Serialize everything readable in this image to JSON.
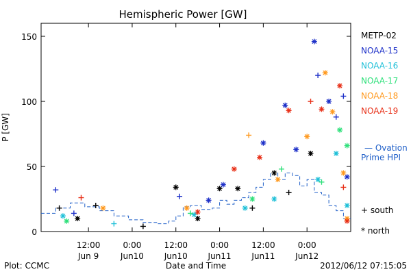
{
  "chart_data": {
    "type": "scatter",
    "title": "Hemispheric Power [GW]",
    "xlabel": "Date and Time",
    "ylabel": "P [GW]",
    "xlim": [
      "2012-06-08T23:00",
      "2012-06-12T12:00"
    ],
    "ylim": [
      0,
      160
    ],
    "yticks": [
      0,
      50,
      100,
      150
    ],
    "xticks": [
      {
        "top": "12:00",
        "bottom": "Jun 9",
        "t": "2012-06-09T12:00"
      },
      {
        "top": "0:00",
        "bottom": "Jun10",
        "t": "2012-06-10T00:00"
      },
      {
        "top": "12:00",
        "bottom": "Jun10",
        "t": "2012-06-10T12:00"
      },
      {
        "top": "0:00",
        "bottom": "Jun11",
        "t": "2012-06-11T00:00"
      },
      {
        "top": "12:00",
        "bottom": "Jun11",
        "t": "2012-06-11T12:00"
      },
      {
        "top": "0:00",
        "bottom": "Jun12",
        "t": "2012-06-12T00:00"
      }
    ],
    "grid": false,
    "legend_position": "right",
    "marker_legend": [
      {
        "symbol": "+",
        "label": "south"
      },
      {
        "symbol": "*",
        "label": "north"
      }
    ],
    "ovation": {
      "name_line1": "— Ovation",
      "name_line2": "Prime HPI",
      "color": "#1f5fc8",
      "points": [
        [
          "2012-06-08T23:00",
          14
        ],
        [
          "2012-06-09T03:00",
          18
        ],
        [
          "2012-06-09T07:00",
          22
        ],
        [
          "2012-06-09T11:00",
          19
        ],
        [
          "2012-06-09T15:00",
          16
        ],
        [
          "2012-06-09T19:00",
          12
        ],
        [
          "2012-06-09T23:00",
          9
        ],
        [
          "2012-06-10T03:00",
          7
        ],
        [
          "2012-06-10T07:00",
          6
        ],
        [
          "2012-06-10T10:00",
          8
        ],
        [
          "2012-06-10T12:00",
          12
        ],
        [
          "2012-06-10T14:00",
          19
        ],
        [
          "2012-06-10T16:00",
          20
        ],
        [
          "2012-06-10T19:00",
          17
        ],
        [
          "2012-06-10T22:00",
          18
        ],
        [
          "2012-06-11T00:00",
          24
        ],
        [
          "2012-06-11T02:00",
          21
        ],
        [
          "2012-06-11T04:00",
          24
        ],
        [
          "2012-06-11T06:00",
          26
        ],
        [
          "2012-06-11T08:00",
          30
        ],
        [
          "2012-06-11T10:00",
          34
        ],
        [
          "2012-06-11T12:00",
          40
        ],
        [
          "2012-06-11T14:00",
          45
        ],
        [
          "2012-06-11T16:00",
          40
        ],
        [
          "2012-06-11T18:00",
          45
        ],
        [
          "2012-06-11T20:00",
          43
        ],
        [
          "2012-06-11T22:00",
          35
        ],
        [
          "2012-06-12T00:00",
          40
        ],
        [
          "2012-06-12T02:00",
          30
        ],
        [
          "2012-06-12T04:00",
          28
        ],
        [
          "2012-06-12T06:00",
          20
        ],
        [
          "2012-06-12T08:00",
          16
        ],
        [
          "2012-06-12T10:00",
          10
        ]
      ]
    },
    "series": [
      {
        "name": "METP-02",
        "color": "#000000",
        "points": [
          [
            "2012-06-09T04:00",
            18,
            "+"
          ],
          [
            "2012-06-09T09:00",
            10,
            "*"
          ],
          [
            "2012-06-09T14:00",
            20,
            "+"
          ],
          [
            "2012-06-10T03:00",
            4,
            "+"
          ],
          [
            "2012-06-10T12:00",
            34,
            "*"
          ],
          [
            "2012-06-10T18:00",
            10,
            "*"
          ],
          [
            "2012-06-11T00:00",
            33,
            "*"
          ],
          [
            "2012-06-11T05:00",
            33,
            "*"
          ],
          [
            "2012-06-11T09:00",
            18,
            "+"
          ],
          [
            "2012-06-11T15:00",
            45,
            "*"
          ],
          [
            "2012-06-11T19:00",
            30,
            "+"
          ],
          [
            "2012-06-12T01:00",
            60,
            "*"
          ]
        ]
      },
      {
        "name": "NOAA-15",
        "color": "#1c2fc8",
        "points": [
          [
            "2012-06-09T03:00",
            32,
            "+"
          ],
          [
            "2012-06-09T08:00",
            14,
            "+"
          ],
          [
            "2012-06-10T13:00",
            27,
            "+"
          ],
          [
            "2012-06-10T21:00",
            24,
            "*"
          ],
          [
            "2012-06-11T01:00",
            36,
            "*"
          ],
          [
            "2012-06-11T12:00",
            68,
            "*"
          ],
          [
            "2012-06-11T18:00",
            97,
            "*"
          ],
          [
            "2012-06-11T21:00",
            63,
            "*"
          ],
          [
            "2012-06-12T02:00",
            146,
            "*"
          ],
          [
            "2012-06-12T03:00",
            120,
            "+"
          ],
          [
            "2012-06-12T06:00",
            100,
            "*"
          ],
          [
            "2012-06-12T08:00",
            88,
            "+"
          ],
          [
            "2012-06-12T10:00",
            104,
            "+"
          ],
          [
            "2012-06-12T11:00",
            42,
            "*"
          ]
        ]
      },
      {
        "name": "NOAA-16",
        "color": "#20c0d8",
        "points": [
          [
            "2012-06-09T05:00",
            12,
            "*"
          ],
          [
            "2012-06-09T19:00",
            6,
            "+"
          ],
          [
            "2012-06-10T17:00",
            13,
            "*"
          ],
          [
            "2012-06-11T07:00",
            18,
            "*"
          ],
          [
            "2012-06-11T15:00",
            25,
            "*"
          ],
          [
            "2012-06-12T03:00",
            40,
            "*"
          ],
          [
            "2012-06-12T08:00",
            60,
            "*"
          ],
          [
            "2012-06-12T11:00",
            20,
            "*"
          ]
        ]
      },
      {
        "name": "NOAA-17",
        "color": "#2ee07a",
        "points": [
          [
            "2012-06-09T06:00",
            8,
            "*"
          ],
          [
            "2012-06-10T16:00",
            14,
            "+"
          ],
          [
            "2012-06-11T09:00",
            25,
            "*"
          ],
          [
            "2012-06-11T17:00",
            48,
            "+"
          ],
          [
            "2012-06-12T04:00",
            38,
            "+"
          ],
          [
            "2012-06-12T09:00",
            78,
            "*"
          ],
          [
            "2012-06-12T11:00",
            66,
            "*"
          ]
        ]
      },
      {
        "name": "NOAA-18",
        "color": "#ff9a20",
        "points": [
          [
            "2012-06-09T16:00",
            18,
            "*"
          ],
          [
            "2012-06-10T15:00",
            18,
            "*"
          ],
          [
            "2012-06-11T08:00",
            74,
            "+"
          ],
          [
            "2012-06-11T16:00",
            40,
            "*"
          ],
          [
            "2012-06-12T00:00",
            73,
            "*"
          ],
          [
            "2012-06-12T05:00",
            122,
            "*"
          ],
          [
            "2012-06-12T07:00",
            92,
            "*"
          ],
          [
            "2012-06-12T10:00",
            45,
            "*"
          ],
          [
            "2012-06-12T11:00",
            10,
            "*"
          ]
        ]
      },
      {
        "name": "NOAA-19",
        "color": "#e83018",
        "points": [
          [
            "2012-06-09T10:00",
            26,
            "+"
          ],
          [
            "2012-06-10T18:00",
            15,
            "*"
          ],
          [
            "2012-06-11T04:00",
            48,
            "*"
          ],
          [
            "2012-06-11T11:00",
            57,
            "*"
          ],
          [
            "2012-06-11T19:00",
            93,
            "*"
          ],
          [
            "2012-06-12T01:00",
            100,
            "+"
          ],
          [
            "2012-06-12T04:00",
            94,
            "*"
          ],
          [
            "2012-06-12T09:00",
            112,
            "*"
          ],
          [
            "2012-06-12T10:00",
            34,
            "+"
          ],
          [
            "2012-06-12T11:00",
            8,
            "*"
          ]
        ]
      }
    ]
  },
  "footer": {
    "left": "Plot: CCMC",
    "right": "2012/06/12 07:15:05"
  }
}
